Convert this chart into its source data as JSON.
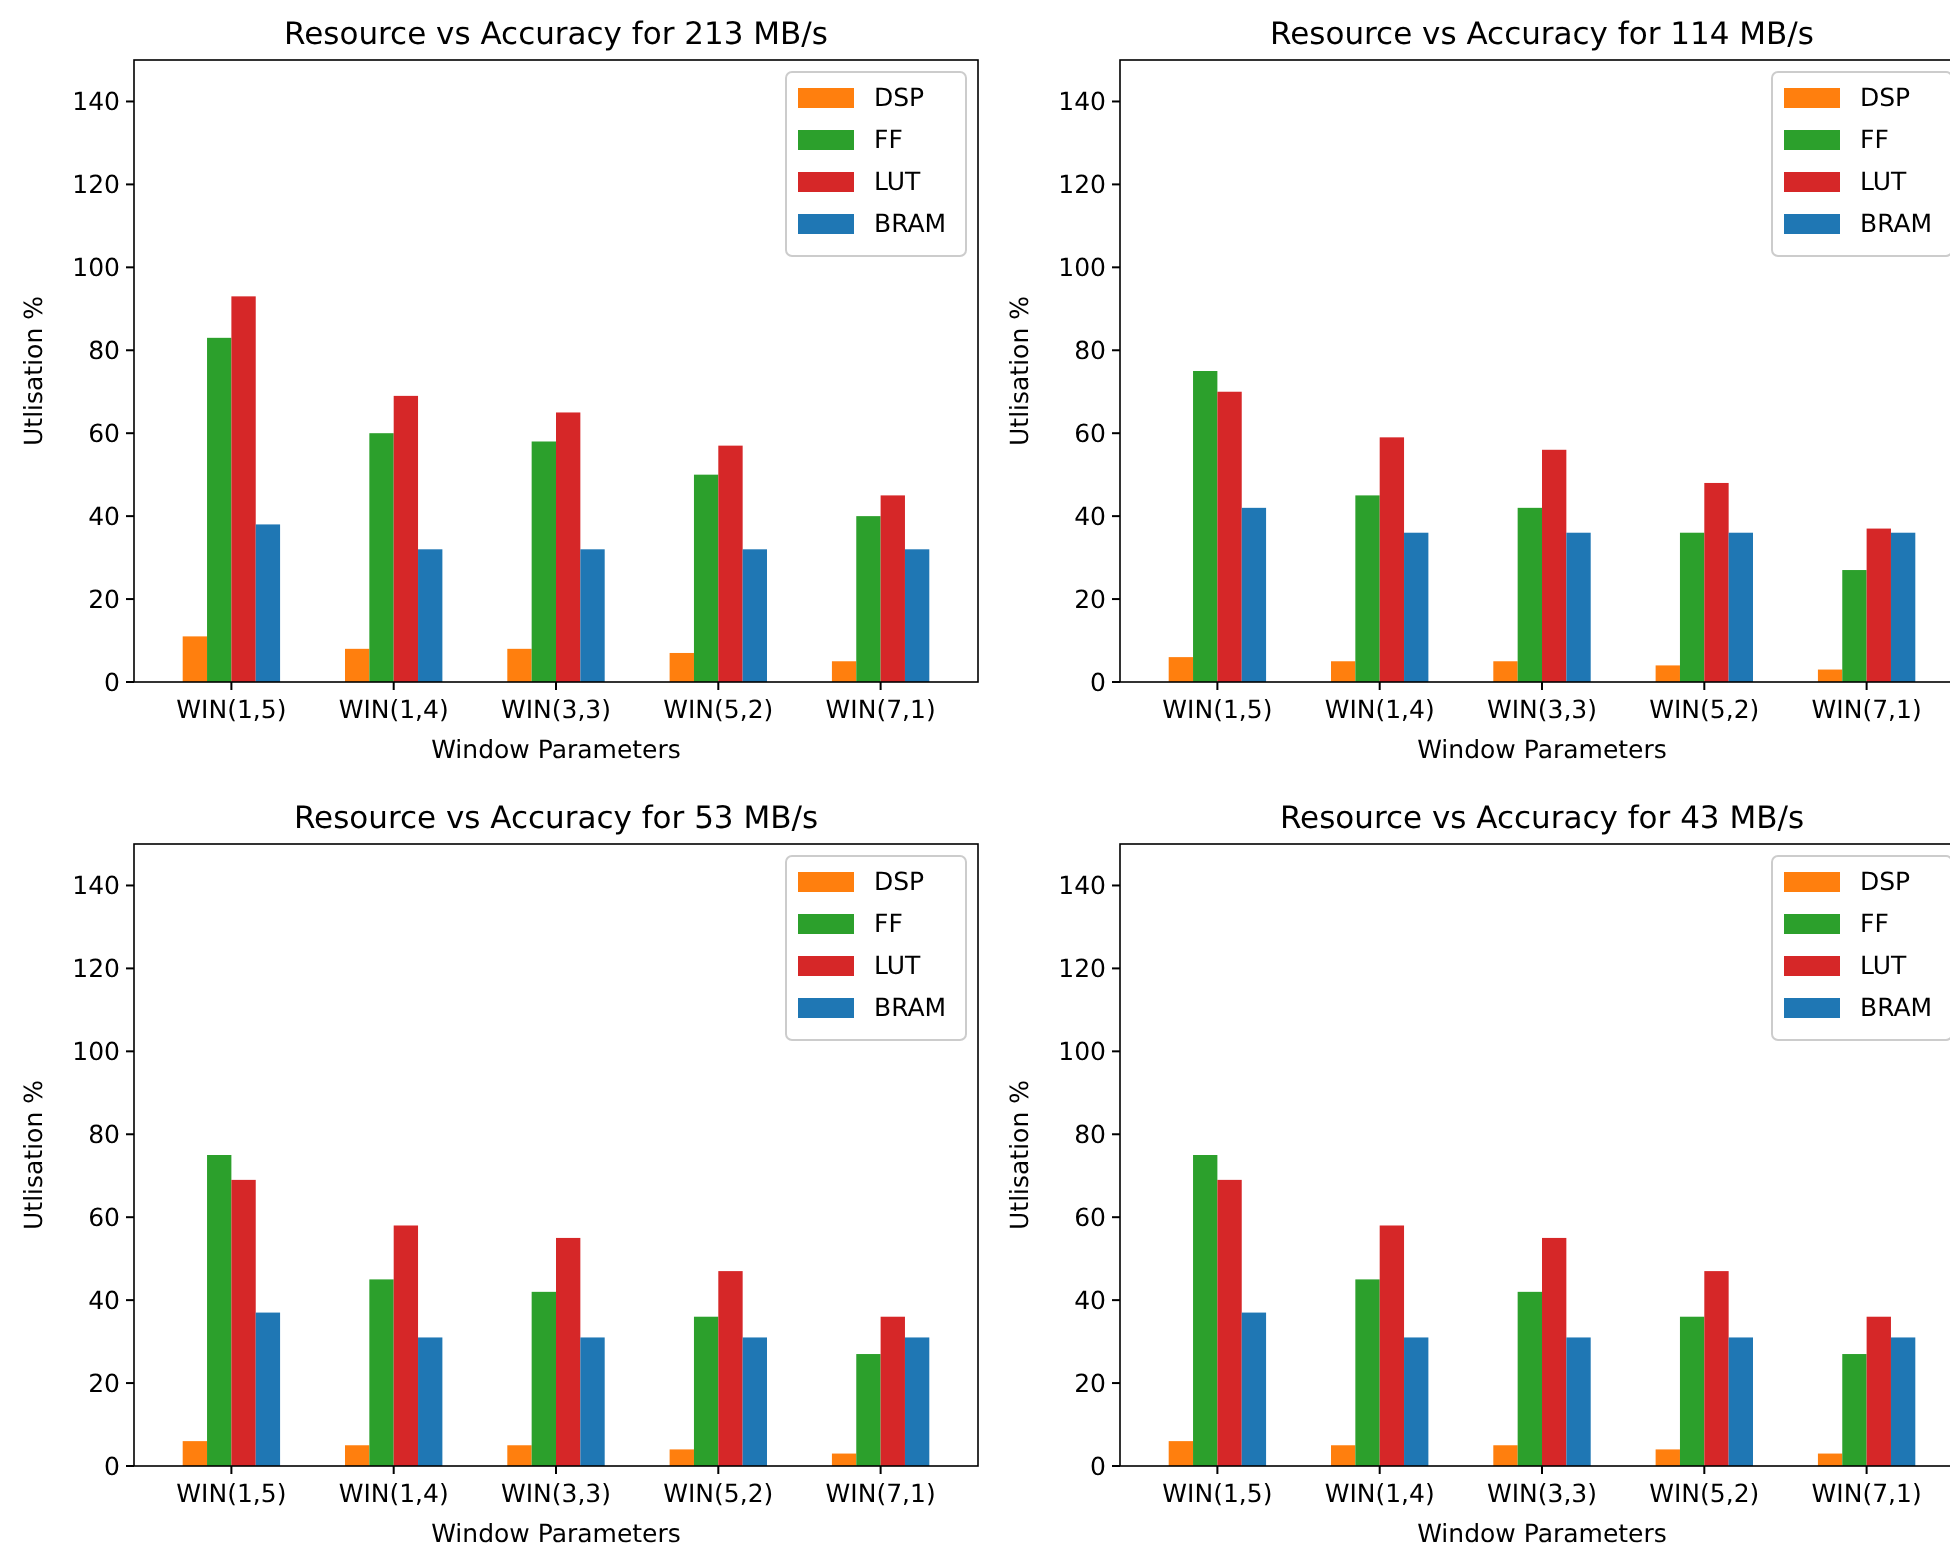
{
  "chart_data": [
    {
      "type": "bar",
      "title": "Resource vs Accuracy for 213 MB/s",
      "xlabel": "Window Parameters",
      "ylabel": "Utlisation %",
      "categories": [
        "WIN(1,5)",
        "WIN(1,4)",
        "WIN(3,3)",
        "WIN(5,2)",
        "WIN(7,1)"
      ],
      "ylim": [
        0,
        150
      ],
      "yticks": [
        0,
        20,
        40,
        60,
        80,
        100,
        120,
        140
      ],
      "legend": "top right",
      "series": [
        {
          "name": "DSP",
          "color": "#ff7f0e",
          "values": [
            11,
            8,
            8,
            7,
            5
          ]
        },
        {
          "name": "FF",
          "color": "#2ca02c",
          "values": [
            83,
            60,
            58,
            50,
            40
          ]
        },
        {
          "name": "LUT",
          "color": "#d62728",
          "values": [
            93,
            69,
            65,
            57,
            45
          ]
        },
        {
          "name": "BRAM",
          "color": "#1f77b4",
          "values": [
            38,
            32,
            32,
            32,
            32
          ]
        }
      ]
    },
    {
      "type": "bar",
      "title": "Resource vs Accuracy for 114 MB/s",
      "xlabel": "Window Parameters",
      "ylabel": "Utlisation %",
      "categories": [
        "WIN(1,5)",
        "WIN(1,4)",
        "WIN(3,3)",
        "WIN(5,2)",
        "WIN(7,1)"
      ],
      "ylim": [
        0,
        150
      ],
      "yticks": [
        0,
        20,
        40,
        60,
        80,
        100,
        120,
        140
      ],
      "legend": "top right",
      "series": [
        {
          "name": "DSP",
          "color": "#ff7f0e",
          "values": [
            6,
            5,
            5,
            4,
            3
          ]
        },
        {
          "name": "FF",
          "color": "#2ca02c",
          "values": [
            75,
            45,
            42,
            36,
            27
          ]
        },
        {
          "name": "LUT",
          "color": "#d62728",
          "values": [
            70,
            59,
            56,
            48,
            37
          ]
        },
        {
          "name": "BRAM",
          "color": "#1f77b4",
          "values": [
            42,
            36,
            36,
            36,
            36
          ]
        }
      ]
    },
    {
      "type": "bar",
      "title": "Resource vs Accuracy for 53 MB/s",
      "xlabel": "Window Parameters",
      "ylabel": "Utlisation %",
      "categories": [
        "WIN(1,5)",
        "WIN(1,4)",
        "WIN(3,3)",
        "WIN(5,2)",
        "WIN(7,1)"
      ],
      "ylim": [
        0,
        150
      ],
      "yticks": [
        0,
        20,
        40,
        60,
        80,
        100,
        120,
        140
      ],
      "legend": "top right",
      "series": [
        {
          "name": "DSP",
          "color": "#ff7f0e",
          "values": [
            6,
            5,
            5,
            4,
            3
          ]
        },
        {
          "name": "FF",
          "color": "#2ca02c",
          "values": [
            75,
            45,
            42,
            36,
            27
          ]
        },
        {
          "name": "LUT",
          "color": "#d62728",
          "values": [
            69,
            58,
            55,
            47,
            36
          ]
        },
        {
          "name": "BRAM",
          "color": "#1f77b4",
          "values": [
            37,
            31,
            31,
            31,
            31
          ]
        }
      ]
    },
    {
      "type": "bar",
      "title": "Resource vs Accuracy for 43 MB/s",
      "xlabel": "Window Parameters",
      "ylabel": "Utlisation %",
      "categories": [
        "WIN(1,5)",
        "WIN(1,4)",
        "WIN(3,3)",
        "WIN(5,2)",
        "WIN(7,1)"
      ],
      "ylim": [
        0,
        150
      ],
      "yticks": [
        0,
        20,
        40,
        60,
        80,
        100,
        120,
        140
      ],
      "legend": "top right",
      "series": [
        {
          "name": "DSP",
          "color": "#ff7f0e",
          "values": [
            6,
            5,
            5,
            4,
            3
          ]
        },
        {
          "name": "FF",
          "color": "#2ca02c",
          "values": [
            75,
            45,
            42,
            36,
            27
          ]
        },
        {
          "name": "LUT",
          "color": "#d62728",
          "values": [
            69,
            58,
            55,
            47,
            36
          ]
        },
        {
          "name": "BRAM",
          "color": "#1f77b4",
          "values": [
            37,
            31,
            31,
            31,
            31
          ]
        }
      ]
    }
  ]
}
